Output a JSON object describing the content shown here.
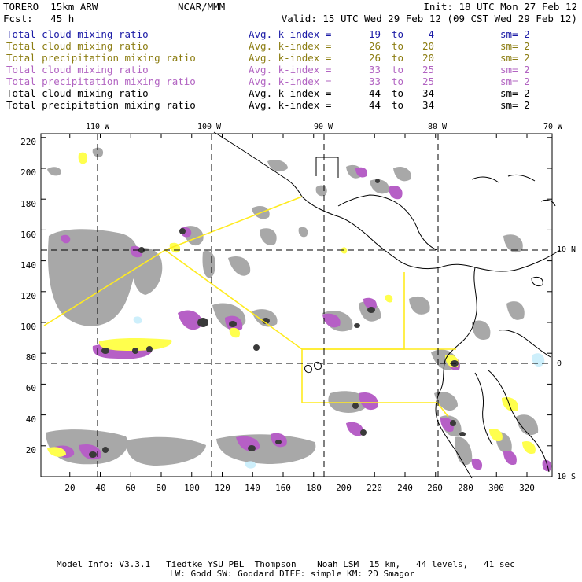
{
  "header": {
    "model": "TORERO  15km ARW",
    "forecast": "Fcst:   45 h",
    "center": "NCAR/MMM",
    "init": "Init: 18 UTC Mon 27 Feb 12",
    "valid": "Valid: 15 UTC Wed 29 Feb 12 (09 CST Wed 29 Feb 12)"
  },
  "legend": {
    "avg_label": "Avg. k-index =",
    "to_label": "to",
    "rows": [
      {
        "name": "Total cloud mixing ratio",
        "v1": "19",
        "v2": "4",
        "sm": "sm= 2",
        "color": "#1a1aa6"
      },
      {
        "name": "Total cloud mixing ratio",
        "v1": "26",
        "v2": "20",
        "sm": "sm= 2",
        "color": "#8c7d12"
      },
      {
        "name": "Total precipitation mixing ratio",
        "v1": "26",
        "v2": "20",
        "sm": "sm= 2",
        "color": "#8c7d12"
      },
      {
        "name": "Total cloud mixing ratio",
        "v1": "33",
        "v2": "25",
        "sm": "sm= 2",
        "color": "#b264c2"
      },
      {
        "name": "Total precipitation mixing ratio",
        "v1": "33",
        "v2": "25",
        "sm": "sm= 2",
        "color": "#b264c2"
      },
      {
        "name": "Total cloud mixing ratio",
        "v1": "44",
        "v2": "34",
        "sm": "sm= 2",
        "color": "#000000"
      },
      {
        "name": "Total precipitation mixing ratio",
        "v1": "44",
        "v2": "34",
        "sm": "sm= 2",
        "color": "#000000"
      }
    ]
  },
  "map": {
    "lon_labels_top": [
      "110 W",
      "100 W",
      "90 W",
      "80 W",
      "70 W"
    ],
    "lat_labels_right": [
      "10 N",
      "0",
      "10 S"
    ],
    "y_axis_ticks": [
      "220",
      "200",
      "180",
      "160",
      "140",
      "120",
      "100",
      "80",
      "60",
      "40",
      "20"
    ],
    "x_axis_ticks": [
      "20",
      "40",
      "60",
      "80",
      "100",
      "120",
      "140",
      "160",
      "180",
      "200",
      "220",
      "240",
      "260",
      "280",
      "300",
      "320"
    ],
    "colors": {
      "gray_cloud": "#a8a8a8",
      "dark_core": "#3a3a3a",
      "purple": "#b65fc6",
      "yellow": "#ffff4d",
      "light_cyan": "#cdeffb",
      "box_lines": "#ffeb1f",
      "coast": "#000000"
    }
  },
  "footer": {
    "line1": "Model Info: V3.3.1   Tiedtke YSU PBL  Thompson    Noah LSM  15 km,   44 levels,   41 sec",
    "line2": "LW: Godd SW: Goddard DIFF: simple KM: 2D Smagor"
  }
}
